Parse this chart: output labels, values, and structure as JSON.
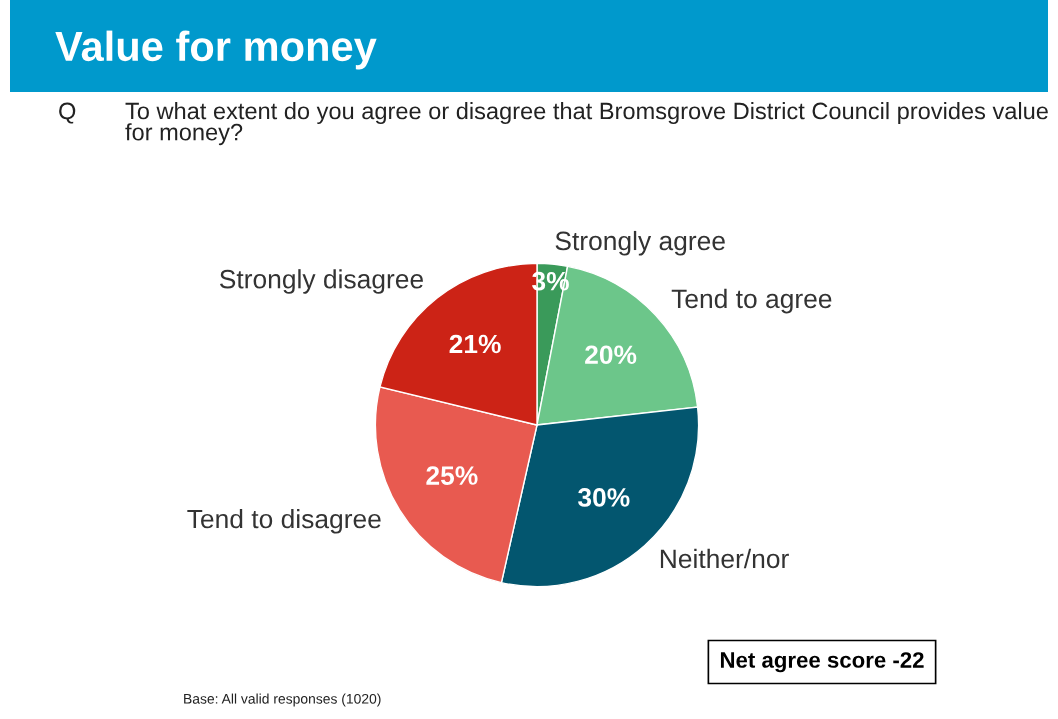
{
  "chart_data": {
    "type": "pie",
    "title": "Value for money",
    "subtitle": "To what extent do you agree or disagree that Bromsgrove District Council provides value for money?",
    "categories": [
      "Strongly agree",
      "Tend to agree",
      "Neither/nor",
      "Tend to disagree",
      "Strongly disagree"
    ],
    "values": [
      3,
      20,
      30,
      25,
      21
    ],
    "colors": [
      "#3a9a5a",
      "#6cc68a",
      "#03566f",
      "#e85a50",
      "#cc2316"
    ],
    "value_labels": [
      "3%",
      "20%",
      "30%",
      "25%",
      "21%"
    ],
    "annotations": [
      "Q",
      "Net agree score -22",
      "Base: All valid responses (1020)"
    ]
  }
}
